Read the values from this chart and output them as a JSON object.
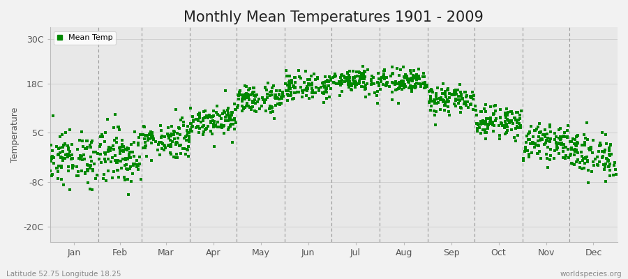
{
  "title": "Monthly Mean Temperatures 1901 - 2009",
  "ylabel": "Temperature",
  "background_color": "#f2f2f2",
  "plot_bg_color": "#e8e8e8",
  "dot_color": "#008800",
  "legend_label": "Mean Temp",
  "yticks": [
    -20,
    -8,
    5,
    18,
    30
  ],
  "ytick_labels": [
    "-20C",
    "-8C",
    "5C",
    "18C",
    "30C"
  ],
  "ylim": [
    -24,
    33
  ],
  "xlim": [
    0,
    12
  ],
  "months": [
    "Jan",
    "Feb",
    "Mar",
    "Apr",
    "May",
    "Jun",
    "Jul",
    "Aug",
    "Sep",
    "Oct",
    "Nov",
    "Dec"
  ],
  "num_years": 109,
  "footnote_left": "Latitude 52.75 Longitude 18.25",
  "footnote_right": "worldspecies.org",
  "title_fontsize": 15,
  "label_fontsize": 9,
  "tick_fontsize": 9,
  "dot_size": 9,
  "mean_temps": [
    -1.8,
    -1.0,
    3.2,
    8.5,
    14.0,
    17.2,
    19.0,
    18.5,
    13.8,
    8.0,
    2.5,
    -0.8
  ],
  "std_temps": [
    3.5,
    3.8,
    2.5,
    2.0,
    2.0,
    1.8,
    1.8,
    1.8,
    1.8,
    2.0,
    2.2,
    3.0
  ]
}
